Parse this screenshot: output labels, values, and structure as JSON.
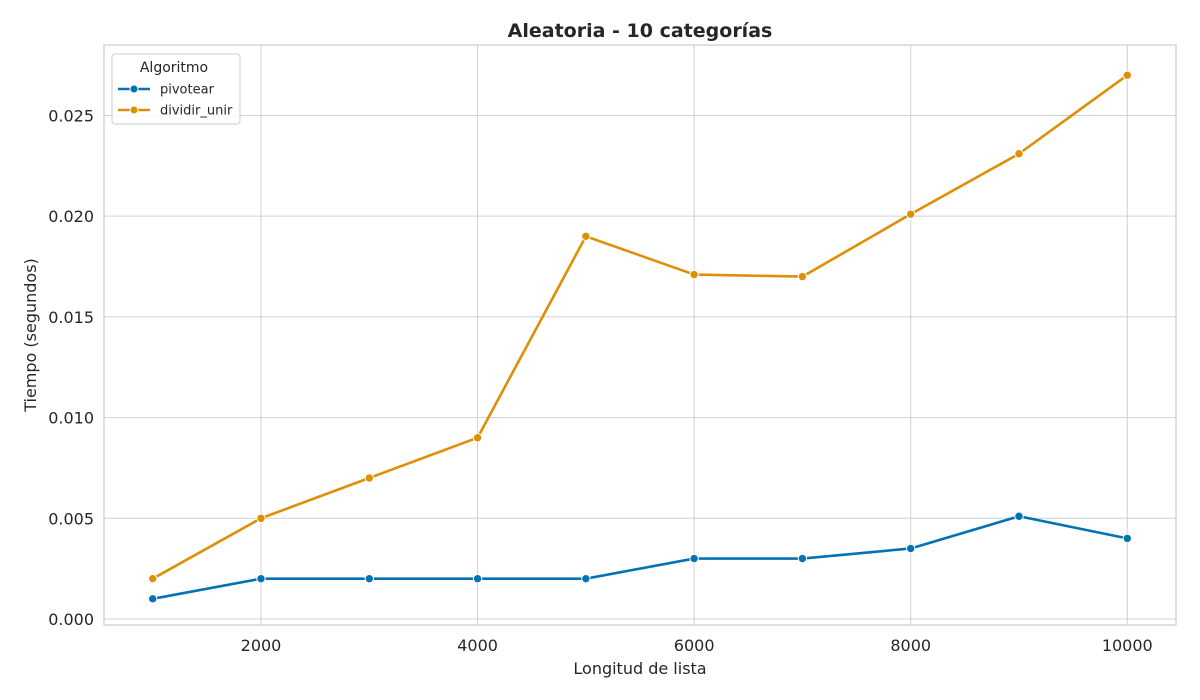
{
  "chart_data": {
    "type": "line",
    "title": "Aleatoria - 10 categorías",
    "xlabel": "Longitud de lista",
    "ylabel": "Tiempo (segundos)",
    "x": [
      1000,
      2000,
      3000,
      4000,
      5000,
      6000,
      7000,
      8000,
      9000,
      10000
    ],
    "xlim": [
      550,
      10450
    ],
    "ylim": [
      -0.0003,
      0.0285
    ],
    "xticks": [
      2000,
      4000,
      6000,
      8000,
      10000
    ],
    "xtick_labels": [
      "2000",
      "4000",
      "6000",
      "8000",
      "10000"
    ],
    "yticks": [
      0.0,
      0.005,
      0.01,
      0.015,
      0.02,
      0.025
    ],
    "ytick_labels": [
      "0.000",
      "0.005",
      "0.010",
      "0.015",
      "0.020",
      "0.025"
    ],
    "grid": true,
    "legend": {
      "title": "Algoritmo",
      "placement": "top-left"
    },
    "series": [
      {
        "name": "pivotear",
        "color": "#0173b2",
        "values": [
          0.001,
          0.002,
          0.002,
          0.002,
          0.002,
          0.003,
          0.003,
          0.0035,
          0.0051,
          0.004
        ]
      },
      {
        "name": "dividir_unir",
        "color": "#de8f05",
        "values": [
          0.002,
          0.005,
          0.007,
          0.009,
          0.019,
          0.0171,
          0.017,
          0.0201,
          0.0231,
          0.027
        ]
      }
    ]
  }
}
